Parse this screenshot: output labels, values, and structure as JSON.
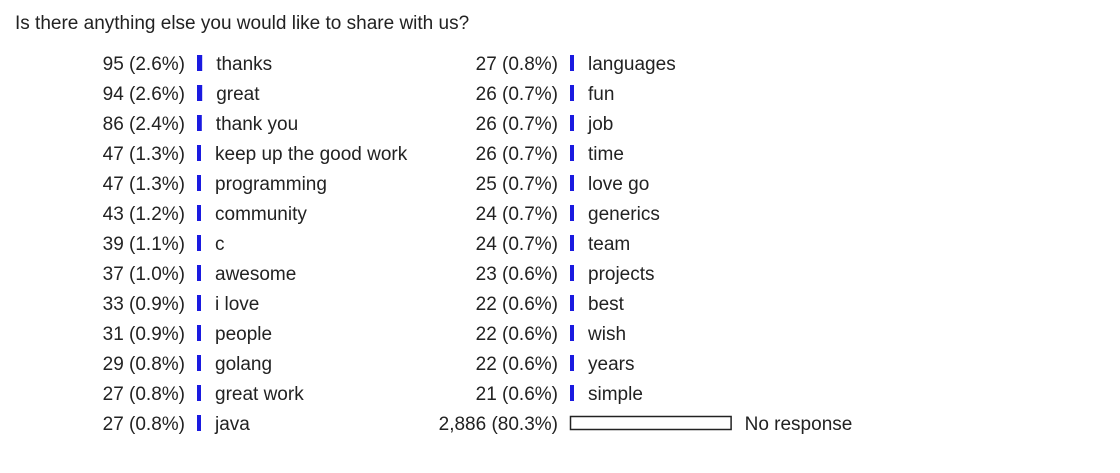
{
  "question": "Is there anything else you would like to share with us?",
  "colors": {
    "bar": "#1a1ae0",
    "bar_outline": "#222222",
    "text": "#222222"
  },
  "chart_data": {
    "type": "bar",
    "orientation": "horizontal",
    "title": "Is there anything else you would like to share with us?",
    "columns": 2,
    "items": [
      {
        "label": "thanks",
        "count": 95,
        "count_text": "95",
        "percent_text": "2.6%",
        "percent": 2.6
      },
      {
        "label": "great",
        "count": 94,
        "count_text": "94",
        "percent_text": "2.6%",
        "percent": 2.6
      },
      {
        "label": "thank you",
        "count": 86,
        "count_text": "86",
        "percent_text": "2.4%",
        "percent": 2.4
      },
      {
        "label": "keep up the good work",
        "count": 47,
        "count_text": "47",
        "percent_text": "1.3%",
        "percent": 1.3
      },
      {
        "label": "programming",
        "count": 47,
        "count_text": "47",
        "percent_text": "1.3%",
        "percent": 1.3
      },
      {
        "label": "community",
        "count": 43,
        "count_text": "43",
        "percent_text": "1.2%",
        "percent": 1.2
      },
      {
        "label": "c",
        "count": 39,
        "count_text": "39",
        "percent_text": "1.1%",
        "percent": 1.1
      },
      {
        "label": "awesome",
        "count": 37,
        "count_text": "37",
        "percent_text": "1.0%",
        "percent": 1.0
      },
      {
        "label": "i love",
        "count": 33,
        "count_text": "33",
        "percent_text": "0.9%",
        "percent": 0.9
      },
      {
        "label": "people",
        "count": 31,
        "count_text": "31",
        "percent_text": "0.9%",
        "percent": 0.9
      },
      {
        "label": "golang",
        "count": 29,
        "count_text": "29",
        "percent_text": "0.8%",
        "percent": 0.8
      },
      {
        "label": "great work",
        "count": 27,
        "count_text": "27",
        "percent_text": "0.8%",
        "percent": 0.8
      },
      {
        "label": "java",
        "count": 27,
        "count_text": "27",
        "percent_text": "0.8%",
        "percent": 0.8
      },
      {
        "label": "languages",
        "count": 27,
        "count_text": "27",
        "percent_text": "0.8%",
        "percent": 0.8
      },
      {
        "label": "fun",
        "count": 26,
        "count_text": "26",
        "percent_text": "0.7%",
        "percent": 0.7
      },
      {
        "label": "job",
        "count": 26,
        "count_text": "26",
        "percent_text": "0.7%",
        "percent": 0.7
      },
      {
        "label": "time",
        "count": 26,
        "count_text": "26",
        "percent_text": "0.7%",
        "percent": 0.7
      },
      {
        "label": "love go",
        "count": 25,
        "count_text": "25",
        "percent_text": "0.7%",
        "percent": 0.7
      },
      {
        "label": "generics",
        "count": 24,
        "count_text": "24",
        "percent_text": "0.7%",
        "percent": 0.7
      },
      {
        "label": "team",
        "count": 24,
        "count_text": "24",
        "percent_text": "0.7%",
        "percent": 0.7
      },
      {
        "label": "projects",
        "count": 23,
        "count_text": "23",
        "percent_text": "0.6%",
        "percent": 0.6
      },
      {
        "label": "best",
        "count": 22,
        "count_text": "22",
        "percent_text": "0.6%",
        "percent": 0.6
      },
      {
        "label": "wish",
        "count": 22,
        "count_text": "22",
        "percent_text": "0.6%",
        "percent": 0.6
      },
      {
        "label": "years",
        "count": 22,
        "count_text": "22",
        "percent_text": "0.6%",
        "percent": 0.6
      },
      {
        "label": "simple",
        "count": 21,
        "count_text": "21",
        "percent_text": "0.6%",
        "percent": 0.6
      },
      {
        "label": "No response",
        "count": 2886,
        "count_text": "2,886",
        "percent_text": "80.3%",
        "percent": 80.3,
        "is_no_response": true
      }
    ]
  }
}
